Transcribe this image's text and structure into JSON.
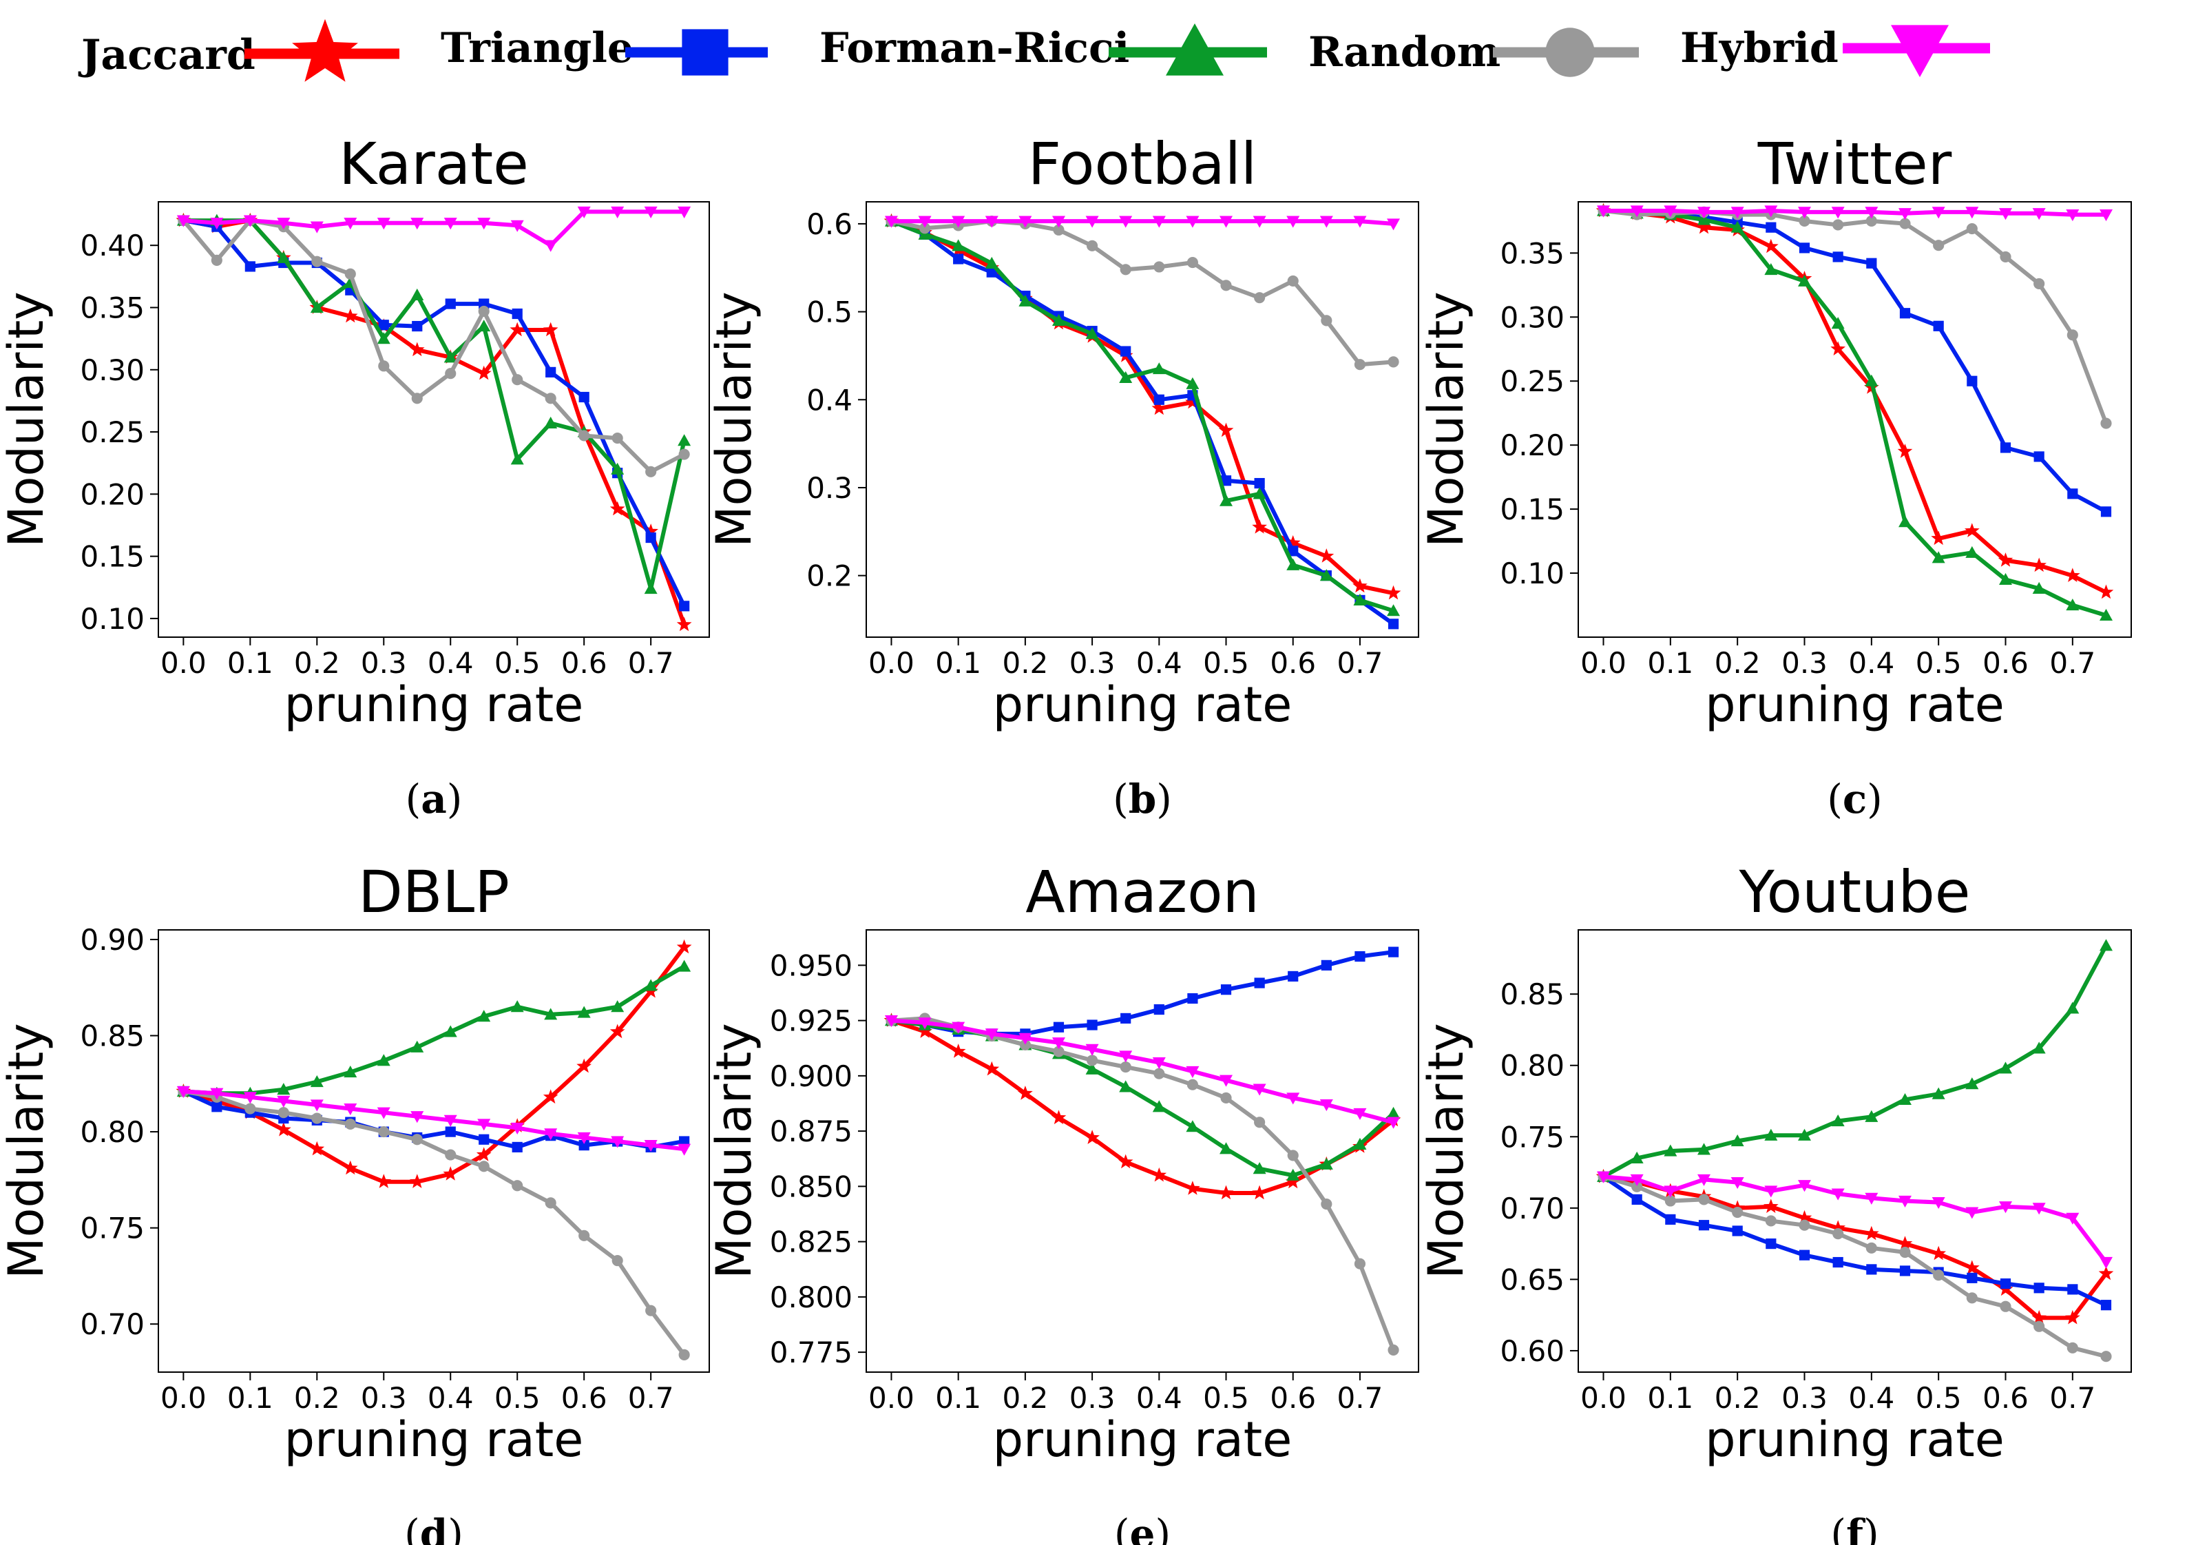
{
  "legend": [
    {
      "name": "Jaccard",
      "color": "#ff0000",
      "marker": "star"
    },
    {
      "name": "Triangle",
      "color": "#0022ee",
      "marker": "square"
    },
    {
      "name": "Forman-Ricci",
      "color": "#0a9a2a",
      "marker": "triangle-up"
    },
    {
      "name": "Random",
      "color": "#999999",
      "marker": "circle"
    },
    {
      "name": "Hybrid",
      "color": "#ff00ff",
      "marker": "triangle-down"
    }
  ],
  "chart_data": [
    {
      "type": "line",
      "caption": "a",
      "title": "Karate",
      "xlabel": "pruning rate",
      "ylabel": "Modularity",
      "xlim": [
        -0.0375,
        0.7875
      ],
      "ylim": [
        0.085,
        0.435
      ],
      "xticks": [
        0.0,
        0.1,
        0.2,
        0.3,
        0.4,
        0.5,
        0.6,
        0.7
      ],
      "xtick_labels": [
        "0.0",
        "0.1",
        "0.2",
        "0.3",
        "0.4",
        "0.5",
        "0.6",
        "0.7"
      ],
      "yticks": [
        0.1,
        0.15,
        0.2,
        0.25,
        0.3,
        0.35,
        0.4
      ],
      "ytick_labels": [
        "0.10",
        "0.15",
        "0.20",
        "0.25",
        "0.30",
        "0.35",
        "0.40"
      ],
      "x": [
        0.0,
        0.05,
        0.1,
        0.15,
        0.2,
        0.25,
        0.3,
        0.35,
        0.4,
        0.45,
        0.5,
        0.55,
        0.6,
        0.65,
        0.7,
        0.75
      ],
      "series": [
        {
          "name": "Jaccard",
          "values": [
            0.42,
            0.415,
            0.42,
            0.39,
            0.35,
            0.343,
            0.335,
            0.316,
            0.31,
            0.297,
            0.332,
            0.332,
            0.25,
            0.188,
            0.17,
            0.095
          ]
        },
        {
          "name": "Triangle",
          "values": [
            0.42,
            0.415,
            0.383,
            0.386,
            0.386,
            0.364,
            0.336,
            0.335,
            0.353,
            0.353,
            0.345,
            0.298,
            0.278,
            0.217,
            0.165,
            0.11
          ]
        },
        {
          "name": "Forman-Ricci",
          "values": [
            0.42,
            0.42,
            0.42,
            0.39,
            0.35,
            0.37,
            0.325,
            0.36,
            0.31,
            0.335,
            0.228,
            0.257,
            0.25,
            0.22,
            0.124,
            0.243
          ]
        },
        {
          "name": "Random",
          "values": [
            0.42,
            0.388,
            0.42,
            0.415,
            0.387,
            0.377,
            0.303,
            0.277,
            0.297,
            0.347,
            0.292,
            0.277,
            0.247,
            0.245,
            0.218,
            0.232
          ]
        },
        {
          "name": "Hybrid",
          "values": [
            0.42,
            0.418,
            0.42,
            0.418,
            0.415,
            0.418,
            0.418,
            0.418,
            0.418,
            0.418,
            0.416,
            0.4,
            0.427,
            0.427,
            0.427,
            0.427
          ]
        }
      ]
    },
    {
      "type": "line",
      "caption": "b",
      "title": "Football",
      "xlabel": "pruning rate",
      "ylabel": "Modularity",
      "xlim": [
        -0.0375,
        0.7875
      ],
      "ylim": [
        0.13,
        0.625
      ],
      "xticks": [
        0.0,
        0.1,
        0.2,
        0.3,
        0.4,
        0.5,
        0.6,
        0.7
      ],
      "xtick_labels": [
        "0.0",
        "0.1",
        "0.2",
        "0.3",
        "0.4",
        "0.5",
        "0.6",
        "0.7"
      ],
      "yticks": [
        0.2,
        0.3,
        0.4,
        0.5,
        0.6
      ],
      "ytick_labels": [
        "0.2",
        "0.3",
        "0.4",
        "0.5",
        "0.6"
      ],
      "x": [
        0.0,
        0.05,
        0.1,
        0.15,
        0.2,
        0.25,
        0.3,
        0.35,
        0.4,
        0.45,
        0.5,
        0.55,
        0.6,
        0.65,
        0.7,
        0.75
      ],
      "series": [
        {
          "name": "Jaccard",
          "values": [
            0.603,
            0.59,
            0.57,
            0.55,
            0.515,
            0.487,
            0.472,
            0.45,
            0.39,
            0.397,
            0.365,
            0.255,
            0.237,
            0.222,
            0.188,
            0.18
          ]
        },
        {
          "name": "Triangle",
          "values": [
            0.603,
            0.588,
            0.56,
            0.545,
            0.518,
            0.495,
            0.478,
            0.455,
            0.4,
            0.405,
            0.308,
            0.305,
            0.228,
            0.2,
            0.172,
            0.145
          ]
        },
        {
          "name": "Forman-Ricci",
          "values": [
            0.603,
            0.588,
            0.575,
            0.555,
            0.512,
            0.49,
            0.475,
            0.425,
            0.435,
            0.418,
            0.285,
            0.293,
            0.212,
            0.2,
            0.172,
            0.16
          ]
        },
        {
          "name": "Random",
          "values": [
            0.603,
            0.595,
            0.598,
            0.603,
            0.6,
            0.593,
            0.575,
            0.548,
            0.551,
            0.556,
            0.53,
            0.516,
            0.535,
            0.49,
            0.44,
            0.443
          ]
        },
        {
          "name": "Hybrid",
          "values": [
            0.603,
            0.603,
            0.603,
            0.603,
            0.603,
            0.603,
            0.603,
            0.603,
            0.603,
            0.603,
            0.603,
            0.603,
            0.603,
            0.603,
            0.603,
            0.6
          ]
        }
      ]
    },
    {
      "type": "line",
      "caption": "c",
      "title": "Twitter",
      "xlabel": "pruning rate",
      "ylabel": "Modularity",
      "xlim": [
        -0.0375,
        0.7875
      ],
      "ylim": [
        0.05,
        0.39
      ],
      "xticks": [
        0.0,
        0.1,
        0.2,
        0.3,
        0.4,
        0.5,
        0.6,
        0.7
      ],
      "xtick_labels": [
        "0.0",
        "0.1",
        "0.2",
        "0.3",
        "0.4",
        "0.5",
        "0.6",
        "0.7"
      ],
      "yticks": [
        0.1,
        0.15,
        0.2,
        0.25,
        0.3,
        0.35
      ],
      "ytick_labels": [
        "0.10",
        "0.15",
        "0.20",
        "0.25",
        "0.30",
        "0.35"
      ],
      "x": [
        0.0,
        0.05,
        0.1,
        0.15,
        0.2,
        0.25,
        0.3,
        0.35,
        0.4,
        0.45,
        0.5,
        0.55,
        0.6,
        0.65,
        0.7,
        0.75
      ],
      "series": [
        {
          "name": "Jaccard",
          "values": [
            0.383,
            0.381,
            0.378,
            0.37,
            0.368,
            0.355,
            0.33,
            0.275,
            0.245,
            0.195,
            0.127,
            0.133,
            0.11,
            0.106,
            0.098,
            0.085
          ]
        },
        {
          "name": "Triangle",
          "values": [
            0.383,
            0.381,
            0.38,
            0.378,
            0.374,
            0.37,
            0.354,
            0.347,
            0.342,
            0.303,
            0.293,
            0.25,
            0.198,
            0.191,
            0.162,
            0.148
          ]
        },
        {
          "name": "Forman-Ricci",
          "values": [
            0.383,
            0.381,
            0.38,
            0.376,
            0.37,
            0.337,
            0.328,
            0.295,
            0.25,
            0.14,
            0.112,
            0.116,
            0.095,
            0.088,
            0.075,
            0.067
          ]
        },
        {
          "name": "Random",
          "values": [
            0.383,
            0.38,
            0.381,
            0.382,
            0.38,
            0.38,
            0.375,
            0.372,
            0.375,
            0.373,
            0.356,
            0.369,
            0.347,
            0.326,
            0.286,
            0.217
          ]
        },
        {
          "name": "Hybrid",
          "values": [
            0.383,
            0.383,
            0.383,
            0.382,
            0.382,
            0.383,
            0.382,
            0.382,
            0.382,
            0.381,
            0.382,
            0.382,
            0.381,
            0.381,
            0.38,
            0.38
          ]
        }
      ]
    },
    {
      "type": "line",
      "caption": "d",
      "title": "DBLP",
      "xlabel": "pruning rate",
      "ylabel": "Modularity",
      "xlim": [
        -0.0375,
        0.7875
      ],
      "ylim": [
        0.675,
        0.905
      ],
      "xticks": [
        0.0,
        0.1,
        0.2,
        0.3,
        0.4,
        0.5,
        0.6,
        0.7
      ],
      "xtick_labels": [
        "0.0",
        "0.1",
        "0.2",
        "0.3",
        "0.4",
        "0.5",
        "0.6",
        "0.7"
      ],
      "yticks": [
        0.7,
        0.75,
        0.8,
        0.85,
        0.9
      ],
      "ytick_labels": [
        "0.70",
        "0.75",
        "0.80",
        "0.85",
        "0.90"
      ],
      "x": [
        0.0,
        0.05,
        0.1,
        0.15,
        0.2,
        0.25,
        0.3,
        0.35,
        0.4,
        0.45,
        0.5,
        0.55,
        0.6,
        0.65,
        0.7,
        0.75
      ],
      "series": [
        {
          "name": "Jaccard",
          "values": [
            0.821,
            0.816,
            0.81,
            0.801,
            0.791,
            0.781,
            0.774,
            0.774,
            0.778,
            0.788,
            0.803,
            0.818,
            0.834,
            0.852,
            0.873,
            0.896
          ]
        },
        {
          "name": "Triangle",
          "values": [
            0.821,
            0.813,
            0.81,
            0.807,
            0.806,
            0.805,
            0.8,
            0.797,
            0.8,
            0.796,
            0.792,
            0.798,
            0.793,
            0.795,
            0.792,
            0.795
          ]
        },
        {
          "name": "Forman-Ricci",
          "values": [
            0.821,
            0.82,
            0.82,
            0.822,
            0.826,
            0.831,
            0.837,
            0.844,
            0.852,
            0.86,
            0.865,
            0.861,
            0.862,
            0.865,
            0.876,
            0.886
          ]
        },
        {
          "name": "Random",
          "values": [
            0.821,
            0.818,
            0.812,
            0.81,
            0.807,
            0.804,
            0.8,
            0.796,
            0.788,
            0.782,
            0.772,
            0.763,
            0.746,
            0.733,
            0.707,
            0.684
          ]
        },
        {
          "name": "Hybrid",
          "values": [
            0.821,
            0.82,
            0.818,
            0.816,
            0.814,
            0.812,
            0.81,
            0.808,
            0.806,
            0.804,
            0.802,
            0.799,
            0.797,
            0.795,
            0.793,
            0.791
          ]
        }
      ]
    },
    {
      "type": "line",
      "caption": "e",
      "title": "Amazon",
      "xlabel": "pruning rate",
      "ylabel": "Modularity",
      "xlim": [
        -0.0375,
        0.7875
      ],
      "ylim": [
        0.766,
        0.966
      ],
      "xticks": [
        0.0,
        0.1,
        0.2,
        0.3,
        0.4,
        0.5,
        0.6,
        0.7
      ],
      "xtick_labels": [
        "0.0",
        "0.1",
        "0.2",
        "0.3",
        "0.4",
        "0.5",
        "0.6",
        "0.7"
      ],
      "yticks": [
        0.775,
        0.8,
        0.825,
        0.85,
        0.875,
        0.9,
        0.925,
        0.95
      ],
      "ytick_labels": [
        "0.775",
        "0.800",
        "0.825",
        "0.850",
        "0.875",
        "0.900",
        "0.925",
        "0.950"
      ],
      "x": [
        0.0,
        0.05,
        0.1,
        0.15,
        0.2,
        0.25,
        0.3,
        0.35,
        0.4,
        0.45,
        0.5,
        0.55,
        0.6,
        0.65,
        0.7,
        0.75
      ],
      "series": [
        {
          "name": "Jaccard",
          "values": [
            0.925,
            0.92,
            0.911,
            0.903,
            0.892,
            0.881,
            0.872,
            0.861,
            0.855,
            0.849,
            0.847,
            0.847,
            0.852,
            0.86,
            0.868,
            0.88
          ]
        },
        {
          "name": "Triangle",
          "values": [
            0.925,
            0.923,
            0.92,
            0.919,
            0.919,
            0.922,
            0.923,
            0.926,
            0.93,
            0.935,
            0.939,
            0.942,
            0.945,
            0.95,
            0.954,
            0.956
          ]
        },
        {
          "name": "Forman-Ricci",
          "values": [
            0.925,
            0.923,
            0.921,
            0.918,
            0.914,
            0.91,
            0.903,
            0.895,
            0.886,
            0.877,
            0.867,
            0.858,
            0.855,
            0.86,
            0.869,
            0.883
          ]
        },
        {
          "name": "Random",
          "values": [
            0.925,
            0.926,
            0.922,
            0.918,
            0.914,
            0.911,
            0.907,
            0.904,
            0.901,
            0.896,
            0.89,
            0.879,
            0.864,
            0.842,
            0.815,
            0.776
          ]
        },
        {
          "name": "Hybrid",
          "values": [
            0.925,
            0.924,
            0.922,
            0.919,
            0.917,
            0.915,
            0.912,
            0.909,
            0.906,
            0.902,
            0.898,
            0.894,
            0.89,
            0.887,
            0.883,
            0.879
          ]
        }
      ]
    },
    {
      "type": "line",
      "caption": "f",
      "title": "Youtube",
      "xlabel": "pruning rate",
      "ylabel": "Modularity",
      "xlim": [
        -0.0375,
        0.7875
      ],
      "ylim": [
        0.585,
        0.895
      ],
      "xticks": [
        0.0,
        0.1,
        0.2,
        0.3,
        0.4,
        0.5,
        0.6,
        0.7
      ],
      "xtick_labels": [
        "0.0",
        "0.1",
        "0.2",
        "0.3",
        "0.4",
        "0.5",
        "0.6",
        "0.7"
      ],
      "yticks": [
        0.6,
        0.65,
        0.7,
        0.75,
        0.8,
        0.85
      ],
      "ytick_labels": [
        "0.60",
        "0.65",
        "0.70",
        "0.75",
        "0.80",
        "0.85"
      ],
      "x": [
        0.0,
        0.05,
        0.1,
        0.15,
        0.2,
        0.25,
        0.3,
        0.35,
        0.4,
        0.45,
        0.5,
        0.55,
        0.6,
        0.65,
        0.7,
        0.75
      ],
      "series": [
        {
          "name": "Jaccard",
          "values": [
            0.722,
            0.718,
            0.712,
            0.708,
            0.7,
            0.701,
            0.693,
            0.686,
            0.682,
            0.675,
            0.668,
            0.658,
            0.643,
            0.623,
            0.623,
            0.654
          ]
        },
        {
          "name": "Triangle",
          "values": [
            0.722,
            0.706,
            0.692,
            0.688,
            0.684,
            0.675,
            0.667,
            0.662,
            0.657,
            0.656,
            0.655,
            0.651,
            0.647,
            0.644,
            0.643,
            0.632
          ]
        },
        {
          "name": "Forman-Ricci",
          "values": [
            0.722,
            0.735,
            0.74,
            0.741,
            0.747,
            0.751,
            0.751,
            0.761,
            0.764,
            0.776,
            0.78,
            0.787,
            0.798,
            0.812,
            0.84,
            0.884
          ]
        },
        {
          "name": "Random",
          "values": [
            0.722,
            0.715,
            0.705,
            0.706,
            0.697,
            0.691,
            0.688,
            0.682,
            0.672,
            0.669,
            0.653,
            0.637,
            0.631,
            0.617,
            0.602,
            0.596
          ]
        },
        {
          "name": "Hybrid",
          "values": [
            0.722,
            0.72,
            0.712,
            0.72,
            0.718,
            0.712,
            0.716,
            0.71,
            0.707,
            0.705,
            0.704,
            0.697,
            0.701,
            0.7,
            0.693,
            0.662
          ]
        }
      ]
    }
  ]
}
